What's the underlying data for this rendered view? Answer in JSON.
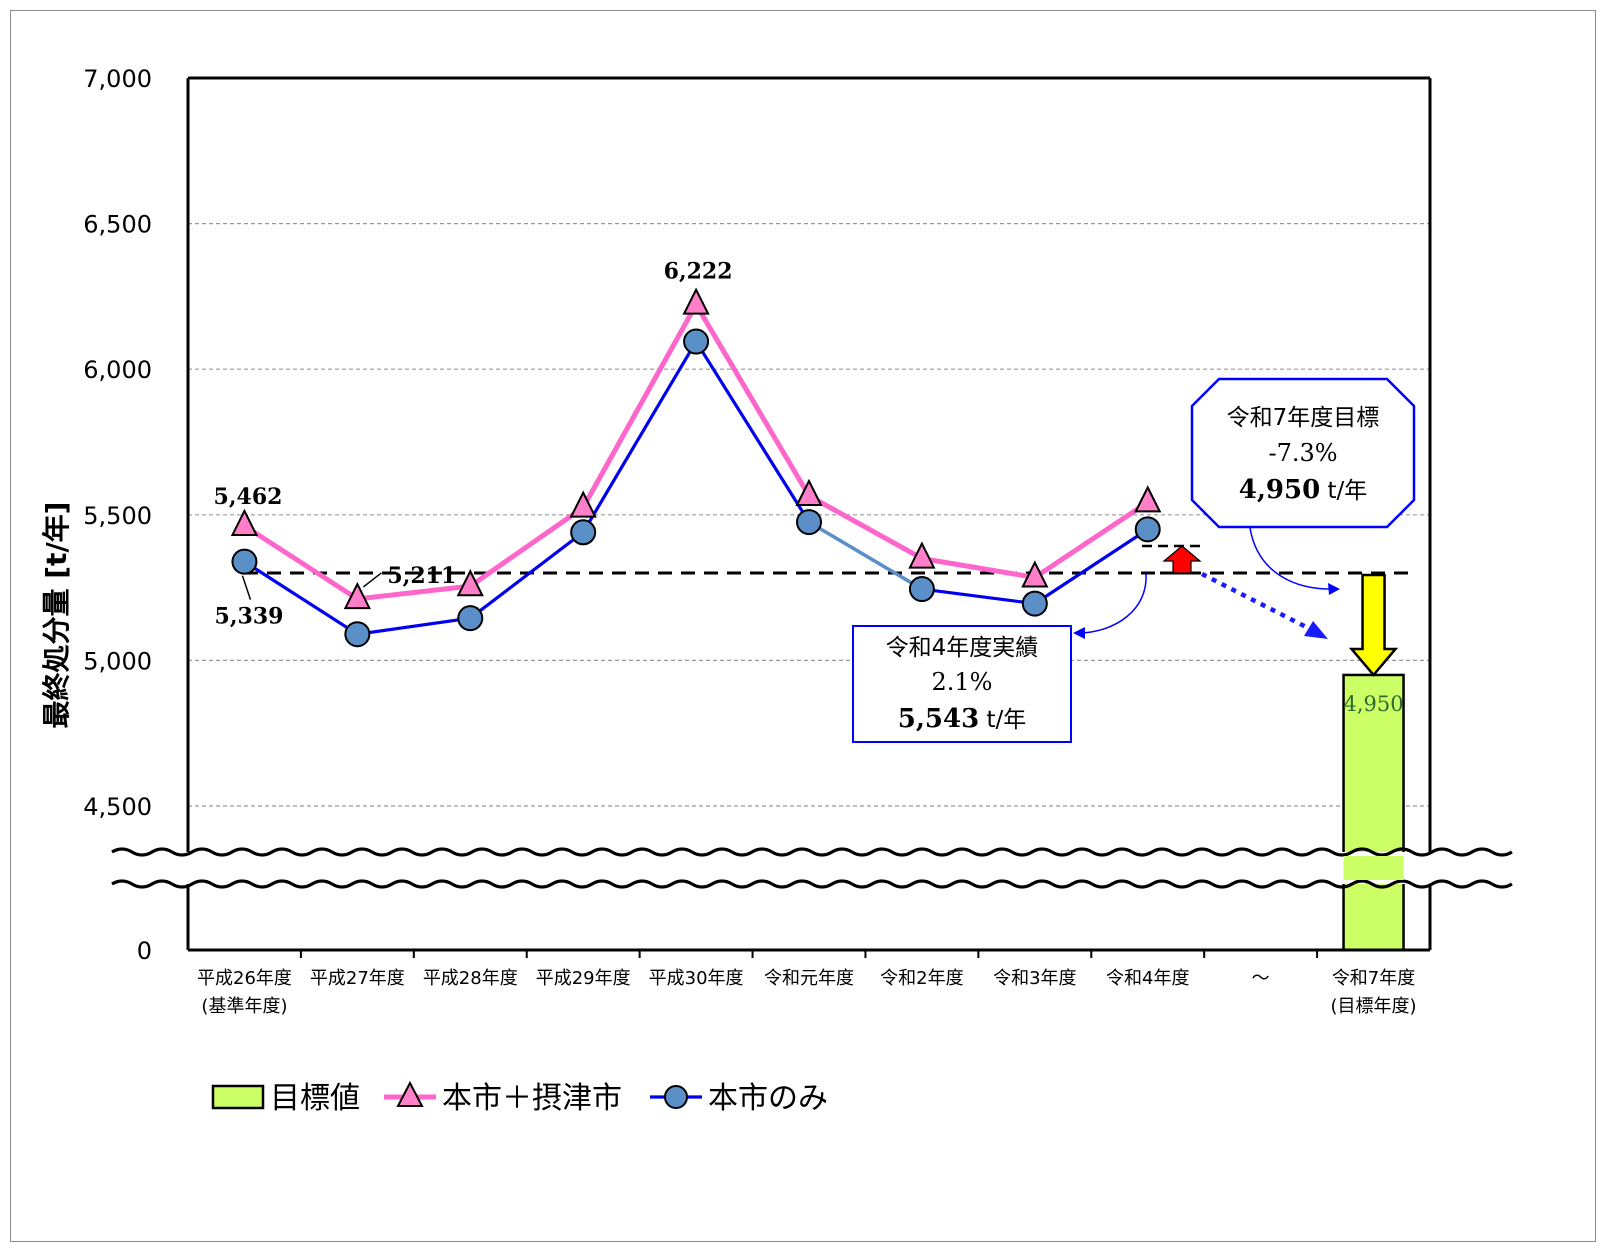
{
  "chart_data": {
    "type": "line",
    "ylabel": "最終処分量 [t/年]",
    "ylim": [
      4500,
      7000
    ],
    "yticks": [
      "0",
      "4,500",
      "5,000",
      "5,500",
      "6,000",
      "6,500",
      "7,000"
    ],
    "axis_break": true,
    "grid": true,
    "categories": [
      [
        "平成26年度",
        "(基準年度)"
      ],
      [
        "平成27年度"
      ],
      [
        "平成28年度"
      ],
      [
        "平成29年度"
      ],
      [
        "平成30年度"
      ],
      [
        "令和元年度"
      ],
      [
        "令和2年度"
      ],
      [
        "令和3年度"
      ],
      [
        "令和4年度"
      ],
      [
        "〜"
      ],
      [
        "令和7年度",
        "(目標年度)"
      ]
    ],
    "series": [
      {
        "name": "本市＋摂津市",
        "marker": "triangle",
        "color": "#ff66cc",
        "values": [
          5462,
          5211,
          5255,
          5525,
          6222,
          5565,
          5350,
          5285,
          5543,
          null,
          null
        ]
      },
      {
        "name": "本市のみ",
        "marker": "circle",
        "color": "#0000ee",
        "values": [
          5339,
          5090,
          5145,
          5440,
          6095,
          5475,
          5245,
          5195,
          5450,
          null,
          null
        ]
      },
      {
        "name": "目標値",
        "type": "bar",
        "color": "#ccff66",
        "values": [
          null,
          null,
          null,
          null,
          null,
          null,
          null,
          null,
          null,
          null,
          4950
        ]
      }
    ],
    "reference_line": 5300,
    "data_labels": {
      "baseline_total": "5,462",
      "baseline_city": "5,339",
      "h27_total": "5,211",
      "h30_total": "6,222",
      "target_bar": "4,950"
    },
    "annotations": {
      "target": {
        "title": "令和7年度目標",
        "pct": "-7.3%",
        "value": "4,950",
        "unit": " t/年"
      },
      "actual": {
        "title": "令和4年度実績",
        "pct": "2.1%",
        "value": "5,543",
        "unit": " t/年"
      }
    },
    "legend": {
      "position": "bottom-left",
      "items": [
        "目標値",
        "本市＋摂津市",
        "本市のみ"
      ]
    }
  }
}
